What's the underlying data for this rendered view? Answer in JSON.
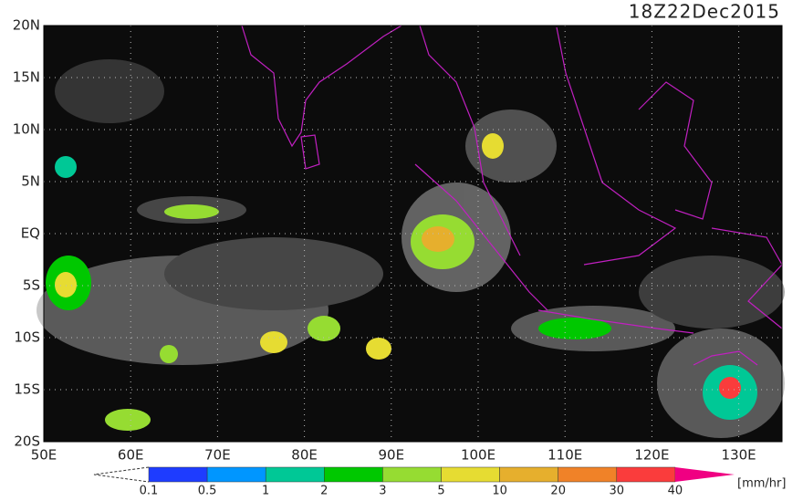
{
  "title": "18Z22Dec2015",
  "map": {
    "lat_labels": [
      "20N",
      "15N",
      "10N",
      "5N",
      "EQ",
      "5S",
      "10S",
      "15S",
      "20S"
    ],
    "lon_labels": [
      "50E",
      "60E",
      "70E",
      "80E",
      "90E",
      "100E",
      "110E",
      "120E",
      "130E"
    ]
  },
  "colorbar": {
    "labels": [
      "0.1",
      "0.5",
      "1",
      "2",
      "3",
      "5",
      "10",
      "20",
      "30",
      "40"
    ],
    "colors": [
      "#1e3cff",
      "#0096ff",
      "#00c896",
      "#00c800",
      "#96dc32",
      "#e6dc32",
      "#e6af2d",
      "#f08228",
      "#fa3c3c",
      "#f00082"
    ],
    "unit": "[mm/hr]"
  }
}
